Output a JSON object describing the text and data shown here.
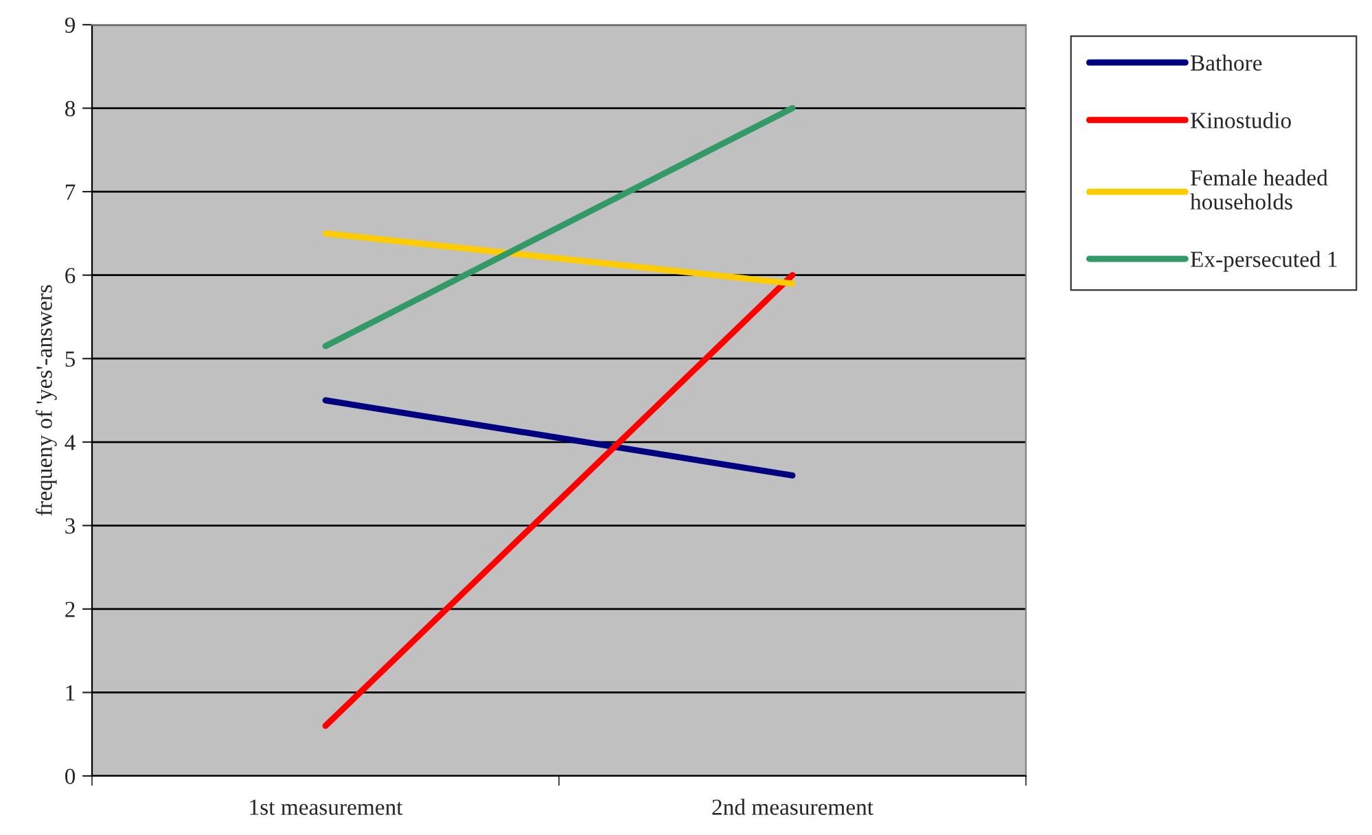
{
  "chart_data": {
    "type": "line",
    "ylabel": "frequeny of 'yes'-answers",
    "categories": [
      "1st measurement",
      "2nd measurement"
    ],
    "series": [
      {
        "name": "Bathore",
        "color": "#000080",
        "values": [
          4.5,
          3.6
        ]
      },
      {
        "name": "Kinostudio",
        "color": "#ff0000",
        "values": [
          0.6,
          6.0
        ]
      },
      {
        "name": "Female headed households",
        "color": "#ffcc00",
        "values": [
          6.5,
          5.9
        ]
      },
      {
        "name": "Ex-persecuted 1",
        "color": "#339966",
        "values": [
          5.15,
          8.0
        ]
      }
    ],
    "ylim": [
      0,
      9
    ],
    "yticks": [
      0,
      1,
      2,
      3,
      4,
      5,
      6,
      7,
      8,
      9
    ],
    "grid": "y",
    "legend": "right",
    "marker": "none",
    "line_style": "solid"
  }
}
